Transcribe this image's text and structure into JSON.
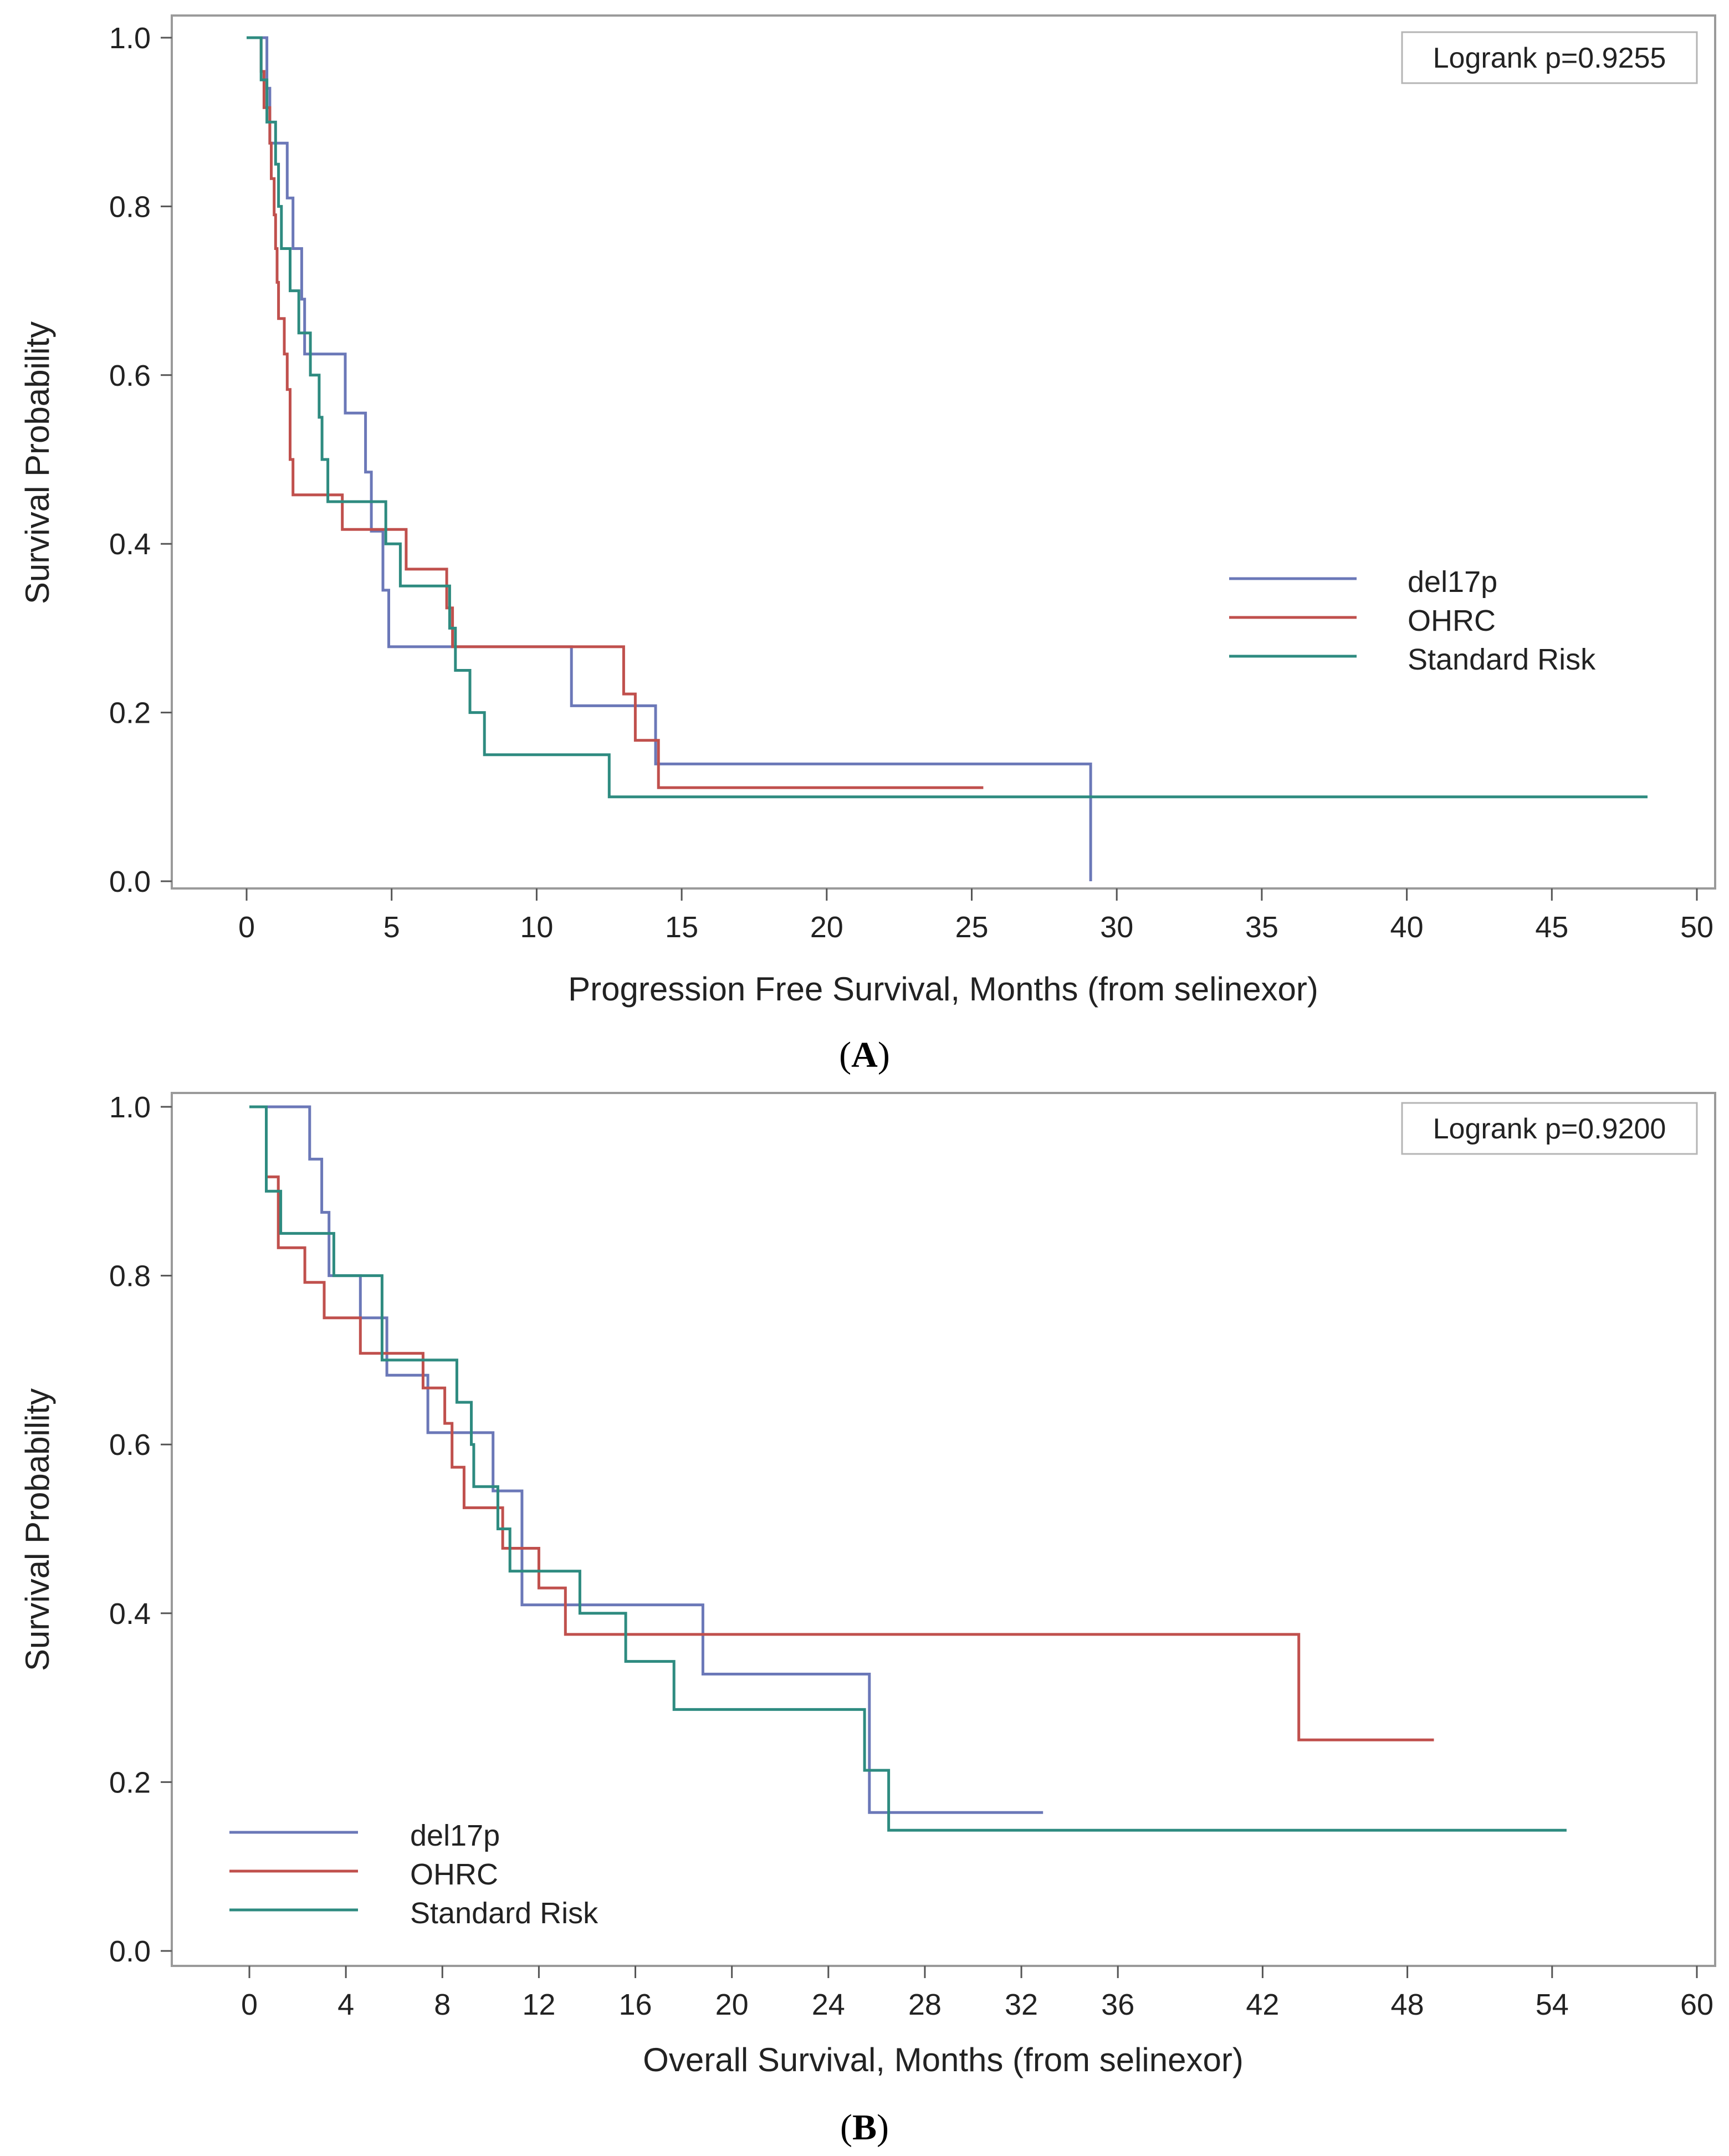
{
  "figure": {
    "panels": [
      {
        "label_open": "(",
        "label_letter": "A",
        "label_close": ")",
        "logrank_text": "Logrank p=0.9255",
        "legend_position": "right-middle"
      },
      {
        "label_open": "(",
        "label_letter": "B",
        "label_close": ")",
        "logrank_text": "Logrank p=0.9200",
        "legend_position": "bottom-left"
      }
    ]
  },
  "chart_data": [
    {
      "type": "line",
      "subtype": "kaplan-meier-step",
      "title": "",
      "xlabel": "Progression Free Survival, Months (from selinexor)",
      "ylabel": "Survival Probability",
      "xlim": [
        0,
        50
      ],
      "ylim": [
        0,
        1.0
      ],
      "xticks": [
        0,
        5,
        10,
        15,
        20,
        25,
        30,
        35,
        40,
        45,
        50
      ],
      "yticks": [
        0.0,
        0.2,
        0.4,
        0.6,
        0.8,
        1.0
      ],
      "xtick_labels": [
        "0",
        "5",
        "10",
        "15",
        "20",
        "25",
        "30",
        "35",
        "40",
        "45",
        "50"
      ],
      "ytick_labels": [
        "0.0",
        "0.2",
        "0.4",
        "0.6",
        "0.8",
        "1.0"
      ],
      "grid": false,
      "series": [
        {
          "name": "del17p",
          "color": "#6b78b8",
          "points": [
            [
              0,
              1.0
            ],
            [
              0.7,
              1.0
            ],
            [
              0.7,
              0.94
            ],
            [
              0.8,
              0.94
            ],
            [
              0.8,
              0.875
            ],
            [
              1.4,
              0.875
            ],
            [
              1.4,
              0.81
            ],
            [
              1.6,
              0.81
            ],
            [
              1.6,
              0.75
            ],
            [
              1.9,
              0.75
            ],
            [
              1.9,
              0.69
            ],
            [
              2.0,
              0.69
            ],
            [
              2.0,
              0.625
            ],
            [
              3.4,
              0.625
            ],
            [
              3.4,
              0.555
            ],
            [
              4.1,
              0.555
            ],
            [
              4.1,
              0.485
            ],
            [
              4.3,
              0.485
            ],
            [
              4.3,
              0.415
            ],
            [
              4.7,
              0.415
            ],
            [
              4.7,
              0.345
            ],
            [
              4.9,
              0.345
            ],
            [
              4.9,
              0.278
            ],
            [
              11.2,
              0.278
            ],
            [
              11.2,
              0.208
            ],
            [
              14.1,
              0.208
            ],
            [
              14.1,
              0.139
            ],
            [
              29.1,
              0.139
            ],
            [
              29.1,
              0.0
            ]
          ]
        },
        {
          "name": "OHRC",
          "color": "#c0504d",
          "points": [
            [
              0,
              1.0
            ],
            [
              0.5,
              1.0
            ],
            [
              0.5,
              0.96
            ],
            [
              0.6,
              0.96
            ],
            [
              0.6,
              0.917
            ],
            [
              0.8,
              0.917
            ],
            [
              0.8,
              0.875
            ],
            [
              0.85,
              0.875
            ],
            [
              0.85,
              0.833
            ],
            [
              0.95,
              0.833
            ],
            [
              0.95,
              0.79
            ],
            [
              1.0,
              0.79
            ],
            [
              1.0,
              0.75
            ],
            [
              1.05,
              0.75
            ],
            [
              1.05,
              0.71
            ],
            [
              1.1,
              0.71
            ],
            [
              1.1,
              0.667
            ],
            [
              1.3,
              0.667
            ],
            [
              1.3,
              0.625
            ],
            [
              1.4,
              0.625
            ],
            [
              1.4,
              0.583
            ],
            [
              1.5,
              0.583
            ],
            [
              1.5,
              0.5
            ],
            [
              1.6,
              0.5
            ],
            [
              1.6,
              0.458
            ],
            [
              3.3,
              0.458
            ],
            [
              3.3,
              0.417
            ],
            [
              5.5,
              0.417
            ],
            [
              5.5,
              0.37
            ],
            [
              6.9,
              0.37
            ],
            [
              6.9,
              0.324
            ],
            [
              7.1,
              0.324
            ],
            [
              7.1,
              0.278
            ],
            [
              13.0,
              0.278
            ],
            [
              13.0,
              0.222
            ],
            [
              13.4,
              0.222
            ],
            [
              13.4,
              0.167
            ],
            [
              14.2,
              0.167
            ],
            [
              14.2,
              0.111
            ],
            [
              25.4,
              0.111
            ]
          ]
        },
        {
          "name": "Standard Risk",
          "color": "#2e8b80",
          "points": [
            [
              0,
              1.0
            ],
            [
              0.5,
              1.0
            ],
            [
              0.5,
              0.95
            ],
            [
              0.7,
              0.95
            ],
            [
              0.7,
              0.9
            ],
            [
              1.0,
              0.9
            ],
            [
              1.0,
              0.85
            ],
            [
              1.1,
              0.85
            ],
            [
              1.1,
              0.8
            ],
            [
              1.2,
              0.8
            ],
            [
              1.2,
              0.75
            ],
            [
              1.5,
              0.75
            ],
            [
              1.5,
              0.7
            ],
            [
              1.8,
              0.7
            ],
            [
              1.8,
              0.65
            ],
            [
              2.2,
              0.65
            ],
            [
              2.2,
              0.6
            ],
            [
              2.5,
              0.6
            ],
            [
              2.5,
              0.55
            ],
            [
              2.6,
              0.55
            ],
            [
              2.6,
              0.5
            ],
            [
              2.8,
              0.5
            ],
            [
              2.8,
              0.45
            ],
            [
              4.8,
              0.45
            ],
            [
              4.8,
              0.4
            ],
            [
              5.3,
              0.4
            ],
            [
              5.3,
              0.35
            ],
            [
              7.0,
              0.35
            ],
            [
              7.0,
              0.3
            ],
            [
              7.2,
              0.3
            ],
            [
              7.2,
              0.25
            ],
            [
              7.7,
              0.25
            ],
            [
              7.7,
              0.2
            ],
            [
              8.2,
              0.2
            ],
            [
              8.2,
              0.15
            ],
            [
              12.5,
              0.15
            ],
            [
              12.5,
              0.1
            ],
            [
              48.3,
              0.1
            ]
          ]
        }
      ]
    },
    {
      "type": "line",
      "subtype": "kaplan-meier-step",
      "title": "",
      "xlabel": "Overall Survival, Months (from selinexor)",
      "ylabel": "Survival Probability",
      "xlim": [
        0,
        60
      ],
      "ylim": [
        0,
        1.0
      ],
      "xticks": [
        0,
        4,
        8,
        12,
        16,
        20,
        24,
        28,
        32,
        36,
        42,
        48,
        54,
        60
      ],
      "yticks": [
        0.0,
        0.2,
        0.4,
        0.6,
        0.8,
        1.0
      ],
      "xtick_labels": [
        "0",
        "4",
        "8",
        "12",
        "16",
        "20",
        "24",
        "28",
        "32",
        "36",
        "42",
        "48",
        "54",
        "60"
      ],
      "ytick_labels": [
        "0.0",
        "0.2",
        "0.4",
        "0.6",
        "0.8",
        "1.0"
      ],
      "grid": false,
      "series": [
        {
          "name": "del17p",
          "color": "#6b78b8",
          "points": [
            [
              0,
              1.0
            ],
            [
              2.5,
              1.0
            ],
            [
              2.5,
              0.938
            ],
            [
              3.0,
              0.938
            ],
            [
              3.0,
              0.875
            ],
            [
              3.3,
              0.875
            ],
            [
              3.3,
              0.8
            ],
            [
              4.6,
              0.8
            ],
            [
              4.6,
              0.75
            ],
            [
              5.7,
              0.75
            ],
            [
              5.7,
              0.682
            ],
            [
              7.4,
              0.682
            ],
            [
              7.4,
              0.614
            ],
            [
              10.1,
              0.614
            ],
            [
              10.1,
              0.545
            ],
            [
              11.3,
              0.545
            ],
            [
              11.3,
              0.41
            ],
            [
              18.8,
              0.41
            ],
            [
              18.8,
              0.328
            ],
            [
              25.7,
              0.328
            ],
            [
              25.7,
              0.164
            ],
            [
              32.9,
              0.164
            ]
          ]
        },
        {
          "name": "OHRC",
          "color": "#c0504d",
          "points": [
            [
              0,
              1.0
            ],
            [
              0.7,
              1.0
            ],
            [
              0.7,
              0.917
            ],
            [
              1.2,
              0.917
            ],
            [
              1.2,
              0.833
            ],
            [
              2.3,
              0.833
            ],
            [
              2.3,
              0.792
            ],
            [
              3.1,
              0.792
            ],
            [
              3.1,
              0.75
            ],
            [
              4.6,
              0.75
            ],
            [
              4.6,
              0.708
            ],
            [
              7.2,
              0.708
            ],
            [
              7.2,
              0.667
            ],
            [
              8.1,
              0.667
            ],
            [
              8.1,
              0.625
            ],
            [
              8.4,
              0.625
            ],
            [
              8.4,
              0.573
            ],
            [
              8.9,
              0.573
            ],
            [
              8.9,
              0.525
            ],
            [
              10.5,
              0.525
            ],
            [
              10.5,
              0.477
            ],
            [
              12.0,
              0.477
            ],
            [
              12.0,
              0.43
            ],
            [
              13.1,
              0.43
            ],
            [
              13.1,
              0.375
            ],
            [
              43.5,
              0.375
            ],
            [
              43.5,
              0.25
            ],
            [
              49.1,
              0.25
            ]
          ]
        },
        {
          "name": "Standard Risk",
          "color": "#2e8b80",
          "points": [
            [
              0,
              1.0
            ],
            [
              0.7,
              1.0
            ],
            [
              0.7,
              0.9
            ],
            [
              1.3,
              0.9
            ],
            [
              1.3,
              0.85
            ],
            [
              3.5,
              0.85
            ],
            [
              3.5,
              0.8
            ],
            [
              5.5,
              0.8
            ],
            [
              5.5,
              0.7
            ],
            [
              8.6,
              0.7
            ],
            [
              8.6,
              0.65
            ],
            [
              9.2,
              0.65
            ],
            [
              9.2,
              0.6
            ],
            [
              9.3,
              0.6
            ],
            [
              9.3,
              0.55
            ],
            [
              10.3,
              0.55
            ],
            [
              10.3,
              0.5
            ],
            [
              10.8,
              0.5
            ],
            [
              10.8,
              0.45
            ],
            [
              13.7,
              0.45
            ],
            [
              13.7,
              0.4
            ],
            [
              15.6,
              0.4
            ],
            [
              15.6,
              0.343
            ],
            [
              17.6,
              0.343
            ],
            [
              17.6,
              0.286
            ],
            [
              25.5,
              0.286
            ],
            [
              25.5,
              0.214
            ],
            [
              26.5,
              0.214
            ],
            [
              26.5,
              0.143
            ],
            [
              54.6,
              0.143
            ]
          ]
        }
      ]
    }
  ]
}
